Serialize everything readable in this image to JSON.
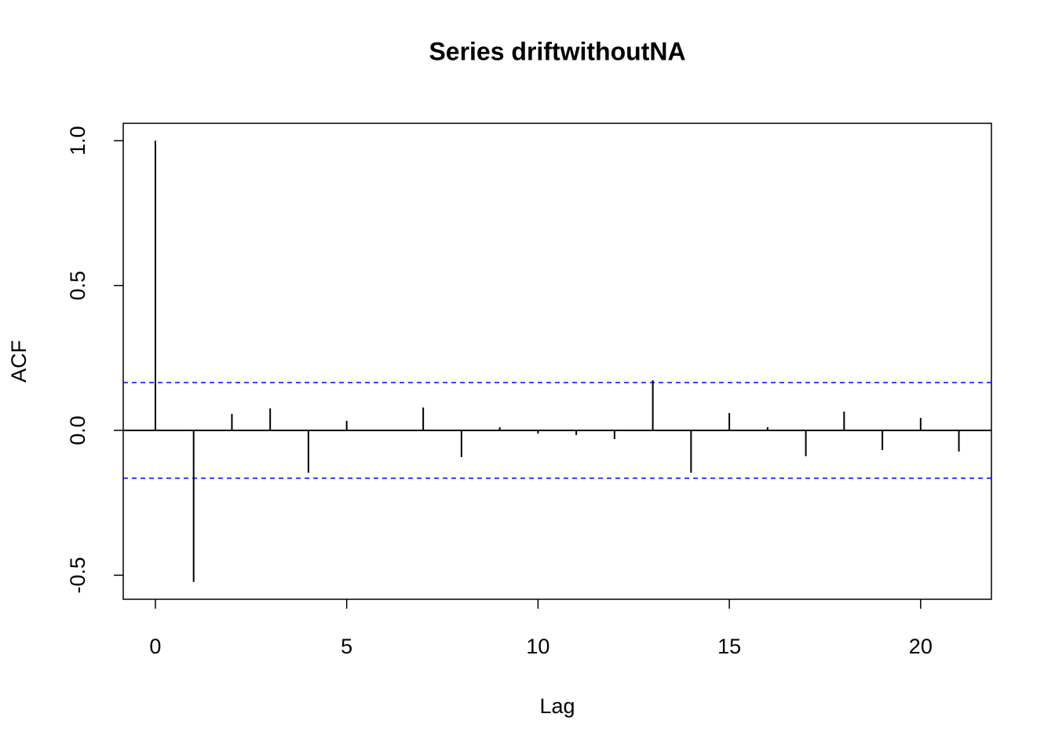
{
  "chart_data": {
    "type": "stem",
    "title": "Series  driftwithoutNA",
    "x_label": "Lag",
    "y_label": "ACF",
    "x": [
      0,
      1,
      2,
      3,
      4,
      5,
      6,
      7,
      8,
      9,
      10,
      11,
      12,
      13,
      14,
      15,
      16,
      17,
      18,
      19,
      20,
      21
    ],
    "values": [
      1.0,
      -0.523,
      0.057,
      0.076,
      -0.146,
      0.033,
      0.002,
      0.079,
      -0.092,
      0.011,
      -0.011,
      -0.016,
      -0.03,
      0.173,
      -0.146,
      0.06,
      0.011,
      -0.089,
      0.065,
      -0.068,
      0.043,
      -0.073
    ],
    "color": "#000000",
    "ci_lines": [
      0.165,
      -0.165
    ],
    "ci_color": "#0000ff",
    "xlim": [
      -0.84,
      21.85
    ],
    "ylim": [
      -0.583,
      1.06
    ],
    "xticks": [
      0,
      5,
      10,
      15,
      20
    ],
    "yticks": [
      -0.5,
      {
        "value": 0,
        "label": "0.0"
      },
      0.5,
      {
        "value": 1,
        "label": "1.0"
      }
    ]
  }
}
